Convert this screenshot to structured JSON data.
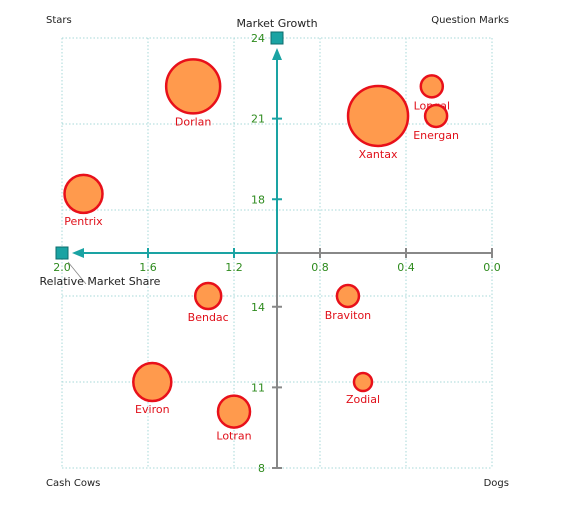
{
  "chart_data": {
    "type": "scatter",
    "subtype": "bubble-matrix",
    "quadrants": {
      "top_left": "Stars",
      "top_right": "Question Marks",
      "bottom_left": "Cash Cows",
      "bottom_right": "Dogs"
    },
    "y_axis": {
      "label": "Market Growth",
      "range": [
        8,
        24
      ],
      "ticks": [
        8,
        11,
        14,
        18,
        21,
        24
      ],
      "crosses_x_at": 1.0
    },
    "x_axis": {
      "label": "Relative Market Share",
      "range": [
        2.0,
        0.0
      ],
      "reversed": true,
      "ticks": [
        "2.0",
        "1.6",
        "1.2",
        "0.8",
        "0.4",
        "0.0"
      ],
      "crosses_y_at": 16
    },
    "series": [
      {
        "points": [
          {
            "name": "Dorlan",
            "x": 1.39,
            "y": 22.2,
            "size": 27
          },
          {
            "name": "Xantax",
            "x": 0.53,
            "y": 21.1,
            "size": 30
          },
          {
            "name": "Longal",
            "x": 0.28,
            "y": 22.2,
            "size": 11
          },
          {
            "name": "Energan",
            "x": 0.26,
            "y": 21.1,
            "size": 11
          },
          {
            "name": "Pentrix",
            "x": 1.9,
            "y": 18.2,
            "size": 19
          },
          {
            "name": "Bendac",
            "x": 1.32,
            "y": 14.4,
            "size": 13
          },
          {
            "name": "Braviton",
            "x": 0.67,
            "y": 14.4,
            "size": 11
          },
          {
            "name": "Eviron",
            "x": 1.58,
            "y": 11.2,
            "size": 19
          },
          {
            "name": "Lotran",
            "x": 1.2,
            "y": 10.1,
            "size": 16
          },
          {
            "name": "Zodial",
            "x": 0.6,
            "y": 11.2,
            "size": 9
          }
        ]
      }
    ],
    "grid": true,
    "colors": {
      "bubble_fill": "#ff9a4d",
      "bubble_stroke": "#e8101a",
      "label": "#e0101a",
      "axis": "#1aa3a3",
      "axis_grey": "#888888",
      "tick_label": "#2e8b1e",
      "grid": "#a7d8d8"
    }
  }
}
